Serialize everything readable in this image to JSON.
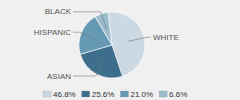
{
  "chart_data": {
    "type": "pie",
    "categories": [
      "WHITE",
      "ASIAN",
      "HISPANIC",
      "BLACK"
    ],
    "values": [
      46.8,
      25.6,
      21.0,
      6.6
    ],
    "value_labels": [
      "46.8%",
      "25.6%",
      "21.0%",
      "6.6%"
    ],
    "colors": [
      "#ccd9e3",
      "#3d6e8c",
      "#6699b3",
      "#9bbccc"
    ],
    "legend": "bottom"
  }
}
